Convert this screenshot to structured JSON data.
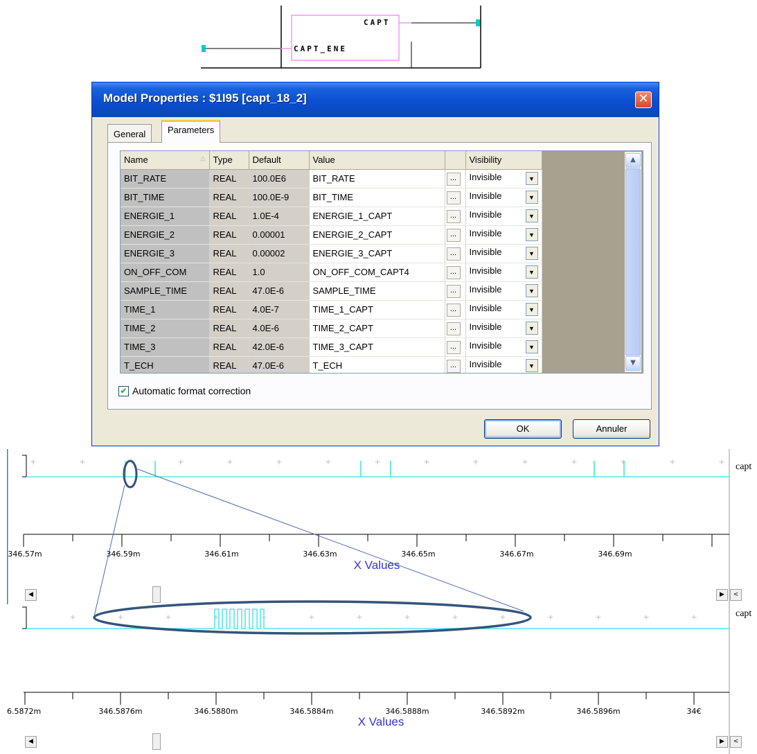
{
  "schematic": {
    "pin_out": "CAPT",
    "pin_in": "CAPT_ENE"
  },
  "dialog": {
    "title": "Model Properties : $1I95 [capt_18_2]",
    "close_glyph": "✕",
    "tabs": [
      "General",
      "Parameters"
    ],
    "active_tab": "Parameters",
    "columns": [
      "Name",
      "Type",
      "Default",
      "Value",
      "",
      "Visibility"
    ],
    "rows": [
      {
        "name": "BIT_RATE",
        "type": "REAL",
        "default": "100.0E6",
        "value": "BIT_RATE",
        "visibility": "Invisible"
      },
      {
        "name": "BIT_TIME",
        "type": "REAL",
        "default": "100.0E-9",
        "value": "BIT_TIME",
        "visibility": "Invisible"
      },
      {
        "name": "ENERGIE_1",
        "type": "REAL",
        "default": "1.0E-4",
        "value": "ENERGIE_1_CAPT",
        "visibility": "Invisible"
      },
      {
        "name": "ENERGIE_2",
        "type": "REAL",
        "default": "0.00001",
        "value": "ENERGIE_2_CAPT",
        "visibility": "Invisible"
      },
      {
        "name": "ENERGIE_3",
        "type": "REAL",
        "default": "0.00002",
        "value": "ENERGIE_3_CAPT",
        "visibility": "Invisible"
      },
      {
        "name": "ON_OFF_COM",
        "type": "REAL",
        "default": "1.0",
        "value": "ON_OFF_COM_CAPT4",
        "visibility": "Invisible"
      },
      {
        "name": "SAMPLE_TIME",
        "type": "REAL",
        "default": "47.0E-6",
        "value": "SAMPLE_TIME",
        "visibility": "Invisible"
      },
      {
        "name": "TIME_1",
        "type": "REAL",
        "default": "4.0E-7",
        "value": "TIME_1_CAPT",
        "visibility": "Invisible"
      },
      {
        "name": "TIME_2",
        "type": "REAL",
        "default": "4.0E-6",
        "value": "TIME_2_CAPT",
        "visibility": "Invisible"
      },
      {
        "name": "TIME_3",
        "type": "REAL",
        "default": "42.0E-6",
        "value": "TIME_3_CAPT",
        "visibility": "Invisible"
      },
      {
        "name": "T_ECH",
        "type": "REAL",
        "default": "47.0E-6",
        "value": "T_ECH",
        "visibility": "Invisible"
      }
    ],
    "dots_label": "...",
    "dropdown_glyph": "▼",
    "scroll_up_glyph": "▲",
    "scroll_down_glyph": "▼",
    "checkbox_label": "Automatic format correction",
    "checkbox_checked": true,
    "checkbox_glyph": "✔",
    "ok_label": "OK",
    "cancel_label": "Annuler"
  },
  "plots": [
    {
      "trace_name": "capt",
      "axis_title": "X Values",
      "tick_labels": [
        "346.57m",
        "346.59m",
        "346.61m",
        "346.63m",
        "346.65m",
        "346.67m",
        "346.69m"
      ]
    },
    {
      "trace_name": "capt",
      "axis_title": "X Values",
      "tick_labels": [
        "6.5872m",
        "346.5876m",
        "346.5880m",
        "346.5884m",
        "346.5888m",
        "346.5892m",
        "346.5896m",
        "34€"
      ]
    }
  ],
  "scroll_glyphs": {
    "left": "◀",
    "right": "▶",
    "back": "<"
  },
  "colors": {
    "trace": "#33e0e8",
    "axis_title": "#3333dd",
    "zoom_ellipse": "#34547a",
    "zoom_line": "#4a6ab8",
    "titlebar": "#0a4fd0",
    "pin_box": "#ee88ee",
    "pin_dot": "#00cccc"
  }
}
